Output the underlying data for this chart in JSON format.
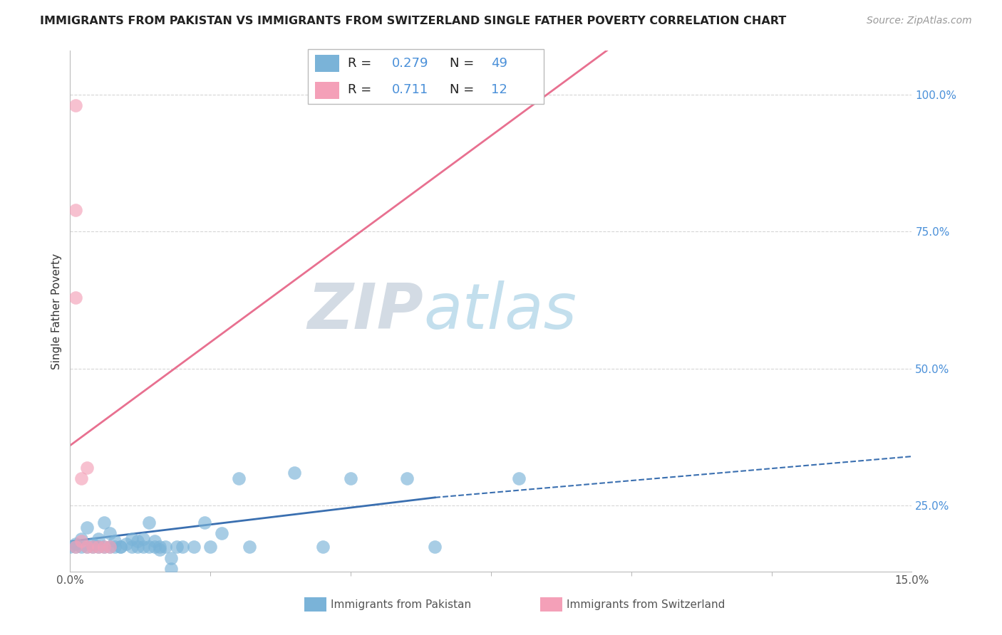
{
  "title": "IMMIGRANTS FROM PAKISTAN VS IMMIGRANTS FROM SWITZERLAND SINGLE FATHER POVERTY CORRELATION CHART",
  "source": "Source: ZipAtlas.com",
  "ylabel": "Single Father Poverty",
  "xlim": [
    0.0,
    0.15
  ],
  "ylim": [
    0.13,
    1.08
  ],
  "watermark_zip": "ZIP",
  "watermark_atlas": "atlas",
  "pakistan_points": [
    [
      0.0,
      0.175
    ],
    [
      0.001,
      0.175
    ],
    [
      0.001,
      0.18
    ],
    [
      0.002,
      0.19
    ],
    [
      0.002,
      0.175
    ],
    [
      0.003,
      0.175
    ],
    [
      0.003,
      0.21
    ],
    [
      0.004,
      0.175
    ],
    [
      0.004,
      0.18
    ],
    [
      0.005,
      0.175
    ],
    [
      0.005,
      0.19
    ],
    [
      0.006,
      0.175
    ],
    [
      0.006,
      0.22
    ],
    [
      0.007,
      0.175
    ],
    [
      0.007,
      0.2
    ],
    [
      0.008,
      0.175
    ],
    [
      0.008,
      0.185
    ],
    [
      0.009,
      0.175
    ],
    [
      0.009,
      0.175
    ],
    [
      0.01,
      0.18
    ],
    [
      0.011,
      0.175
    ],
    [
      0.011,
      0.19
    ],
    [
      0.012,
      0.175
    ],
    [
      0.012,
      0.185
    ],
    [
      0.013,
      0.175
    ],
    [
      0.013,
      0.19
    ],
    [
      0.014,
      0.175
    ],
    [
      0.014,
      0.22
    ],
    [
      0.015,
      0.175
    ],
    [
      0.015,
      0.185
    ],
    [
      0.016,
      0.175
    ],
    [
      0.016,
      0.17
    ],
    [
      0.017,
      0.175
    ],
    [
      0.018,
      0.155
    ],
    [
      0.018,
      0.135
    ],
    [
      0.019,
      0.175
    ],
    [
      0.02,
      0.175
    ],
    [
      0.022,
      0.175
    ],
    [
      0.024,
      0.22
    ],
    [
      0.025,
      0.175
    ],
    [
      0.027,
      0.2
    ],
    [
      0.03,
      0.3
    ],
    [
      0.032,
      0.175
    ],
    [
      0.04,
      0.31
    ],
    [
      0.045,
      0.175
    ],
    [
      0.05,
      0.3
    ],
    [
      0.06,
      0.3
    ],
    [
      0.065,
      0.175
    ],
    [
      0.08,
      0.3
    ]
  ],
  "switzerland_points": [
    [
      0.001,
      0.79
    ],
    [
      0.001,
      0.63
    ],
    [
      0.001,
      0.175
    ],
    [
      0.001,
      0.98
    ],
    [
      0.002,
      0.3
    ],
    [
      0.002,
      0.185
    ],
    [
      0.003,
      0.32
    ],
    [
      0.003,
      0.175
    ],
    [
      0.004,
      0.175
    ],
    [
      0.005,
      0.175
    ],
    [
      0.006,
      0.175
    ],
    [
      0.007,
      0.175
    ]
  ],
  "pakistan_line_solid": {
    "x": [
      0.0,
      0.065
    ],
    "y": [
      0.185,
      0.265
    ]
  },
  "pakistan_line_dashed": {
    "x": [
      0.065,
      0.15
    ],
    "y": [
      0.265,
      0.34
    ]
  },
  "switzerland_line": {
    "x": [
      0.0,
      0.15
    ],
    "y": [
      0.36,
      1.49
    ]
  },
  "pakistan_color": "#7ab3d8",
  "switzerland_color": "#f4a0b8",
  "pakistan_line_color": "#3a6fb0",
  "switzerland_line_color": "#e87090",
  "background_color": "#ffffff",
  "grid_color": "#cccccc",
  "title_fontsize": 11.5,
  "source_fontsize": 10,
  "axis_label_fontsize": 11,
  "tick_fontsize": 11,
  "legend_r1": "R =  0.279   N =  49",
  "legend_r2": "R =  0.711   N =  12",
  "legend_blue_color": "#4a90d9",
  "bottom_label_pak": "Immigrants from Pakistan",
  "bottom_label_swi": "Immigrants from Switzerland"
}
